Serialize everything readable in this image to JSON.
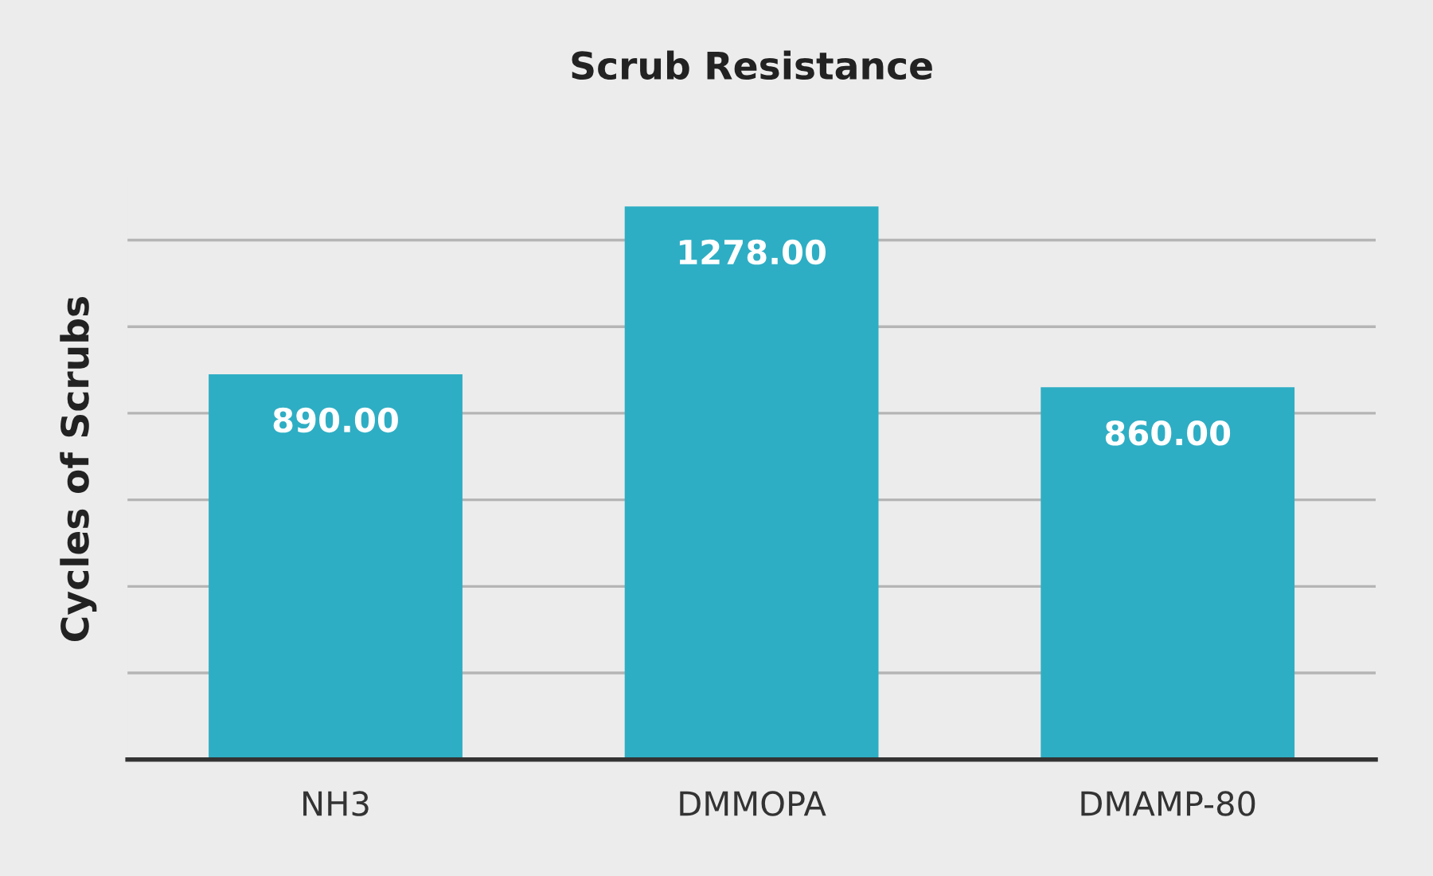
{
  "chart_data": {
    "type": "bar",
    "title": "Scrub Resistance",
    "ylabel": "Cycles of Scrubs",
    "categories": [
      "NH3",
      "DMMOPA",
      "DMAMP-80"
    ],
    "values": [
      890,
      1278,
      860
    ],
    "color": "#2eaec4",
    "value_labels": [
      "890.00",
      "1278.00",
      "860.00"
    ],
    "tick_labels": "x",
    "grid": "y"
  }
}
